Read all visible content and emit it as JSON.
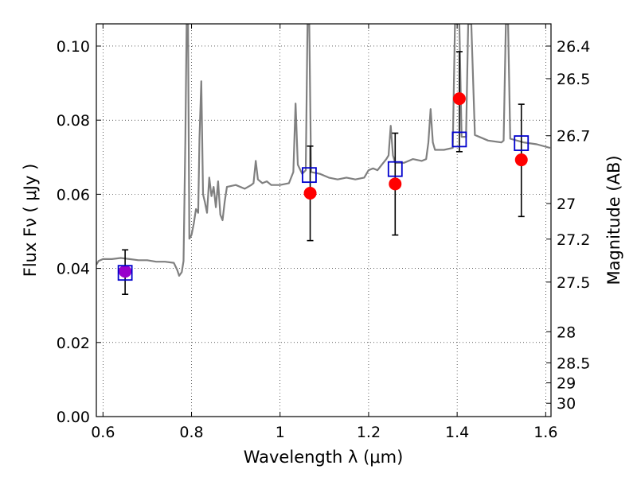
{
  "chart_data": {
    "type": "scatter",
    "title": "",
    "xlabel": "Wavelength  λ (μm)",
    "ylabel": "Flux  Fν  ( μJy )",
    "ylabel_right": "Magnitude (AB)",
    "xlim": [
      0.585,
      1.612
    ],
    "ylim": [
      0.0,
      0.106
    ],
    "grid": true,
    "x_ticks": [
      0.6,
      0.8,
      1.0,
      1.2,
      1.4,
      1.6
    ],
    "x_tick_labels": [
      "0.6",
      "0.8",
      "1",
      "1.2",
      "1.4",
      "1.6"
    ],
    "y_ticks": [
      0.0,
      0.02,
      0.04,
      0.06,
      0.08,
      0.1
    ],
    "y_tick_labels": [
      "0.00",
      "0.02",
      "0.04",
      "0.06",
      "0.08",
      "0.10"
    ],
    "mag_ticks": [
      {
        "flux": 0.1,
        "label": "26.4"
      },
      {
        "flux": 0.0912,
        "label": "26.5"
      },
      {
        "flux": 0.0758,
        "label": "26.7"
      },
      {
        "flux": 0.0575,
        "label": "27"
      },
      {
        "flux": 0.0479,
        "label": "27.2"
      },
      {
        "flux": 0.0363,
        "label": "27.5"
      },
      {
        "flux": 0.0229,
        "label": "28"
      },
      {
        "flux": 0.0145,
        "label": "28.5"
      },
      {
        "flux": 0.0091,
        "label": "29"
      },
      {
        "flux": 0.0036,
        "label": "30"
      }
    ],
    "series": [
      {
        "kind": "line",
        "color": "#808080",
        "points": [
          [
            0.585,
            0.041
          ],
          [
            0.59,
            0.042
          ],
          [
            0.6,
            0.0425
          ],
          [
            0.62,
            0.0425
          ],
          [
            0.64,
            0.0428
          ],
          [
            0.66,
            0.0425
          ],
          [
            0.68,
            0.0422
          ],
          [
            0.7,
            0.0422
          ],
          [
            0.72,
            0.0418
          ],
          [
            0.74,
            0.0418
          ],
          [
            0.76,
            0.0415
          ],
          [
            0.768,
            0.0395
          ],
          [
            0.772,
            0.038
          ],
          [
            0.778,
            0.039
          ],
          [
            0.782,
            0.042
          ],
          [
            0.786,
            0.075
          ],
          [
            0.789,
            0.106
          ],
          [
            0.792,
            0.106
          ],
          [
            0.795,
            0.048
          ],
          [
            0.8,
            0.049
          ],
          [
            0.805,
            0.052
          ],
          [
            0.81,
            0.056
          ],
          [
            0.815,
            0.055
          ],
          [
            0.818,
            0.075
          ],
          [
            0.822,
            0.0905
          ],
          [
            0.826,
            0.06
          ],
          [
            0.83,
            0.058
          ],
          [
            0.835,
            0.055
          ],
          [
            0.84,
            0.0645
          ],
          [
            0.845,
            0.0595
          ],
          [
            0.85,
            0.062
          ],
          [
            0.855,
            0.0565
          ],
          [
            0.86,
            0.0635
          ],
          [
            0.865,
            0.0545
          ],
          [
            0.87,
            0.053
          ],
          [
            0.875,
            0.058
          ],
          [
            0.88,
            0.062
          ],
          [
            0.9,
            0.0625
          ],
          [
            0.92,
            0.0615
          ],
          [
            0.935,
            0.0625
          ],
          [
            0.94,
            0.063
          ],
          [
            0.945,
            0.069
          ],
          [
            0.95,
            0.064
          ],
          [
            0.96,
            0.063
          ],
          [
            0.97,
            0.0635
          ],
          [
            0.98,
            0.0625
          ],
          [
            1.0,
            0.0625
          ],
          [
            1.02,
            0.063
          ],
          [
            1.03,
            0.066
          ],
          [
            1.035,
            0.0845
          ],
          [
            1.04,
            0.068
          ],
          [
            1.05,
            0.0655
          ],
          [
            1.058,
            0.0665
          ],
          [
            1.062,
            0.106
          ],
          [
            1.066,
            0.106
          ],
          [
            1.07,
            0.066
          ],
          [
            1.09,
            0.0655
          ],
          [
            1.11,
            0.0645
          ],
          [
            1.13,
            0.064
          ],
          [
            1.15,
            0.0645
          ],
          [
            1.17,
            0.064
          ],
          [
            1.19,
            0.0645
          ],
          [
            1.2,
            0.0665
          ],
          [
            1.21,
            0.067
          ],
          [
            1.22,
            0.0665
          ],
          [
            1.23,
            0.068
          ],
          [
            1.24,
            0.0695
          ],
          [
            1.245,
            0.0705
          ],
          [
            1.25,
            0.0785
          ],
          [
            1.255,
            0.0705
          ],
          [
            1.26,
            0.0685
          ],
          [
            1.28,
            0.0685
          ],
          [
            1.3,
            0.0695
          ],
          [
            1.32,
            0.069
          ],
          [
            1.33,
            0.0695
          ],
          [
            1.335,
            0.074
          ],
          [
            1.34,
            0.083
          ],
          [
            1.345,
            0.074
          ],
          [
            1.35,
            0.072
          ],
          [
            1.37,
            0.072
          ],
          [
            1.39,
            0.0725
          ],
          [
            1.395,
            0.106
          ],
          [
            1.405,
            0.106
          ],
          [
            1.41,
            0.0755
          ],
          [
            1.42,
            0.0755
          ],
          [
            1.425,
            0.106
          ],
          [
            1.432,
            0.106
          ],
          [
            1.44,
            0.076
          ],
          [
            1.47,
            0.0745
          ],
          [
            1.5,
            0.074
          ],
          [
            1.505,
            0.0745
          ],
          [
            1.51,
            0.106
          ],
          [
            1.515,
            0.106
          ],
          [
            1.52,
            0.075
          ],
          [
            1.55,
            0.074
          ],
          [
            1.58,
            0.0735
          ],
          [
            1.61,
            0.0725
          ]
        ]
      },
      {
        "kind": "points",
        "color": "#ff0000",
        "points": [
          {
            "x": 1.068,
            "y": 0.0603,
            "yerr_low": 0.0475,
            "yerr_high": 0.073
          },
          {
            "x": 1.26,
            "y": 0.0628,
            "yerr_low": 0.049,
            "yerr_high": 0.0765
          },
          {
            "x": 1.405,
            "y": 0.0858,
            "yerr_low": 0.0715,
            "yerr_high": 0.0985
          },
          {
            "x": 1.545,
            "y": 0.0693,
            "yerr_low": 0.054,
            "yerr_high": 0.0843
          }
        ]
      },
      {
        "kind": "points",
        "color": "#9900cc",
        "points": [
          {
            "x": 0.65,
            "y": 0.0392,
            "yerr_low": 0.033,
            "yerr_high": 0.045
          }
        ]
      },
      {
        "kind": "boxes",
        "color": "#0000cc",
        "points": [
          {
            "x": 0.65,
            "y": 0.0388
          },
          {
            "x": 1.066,
            "y": 0.0652
          },
          {
            "x": 1.26,
            "y": 0.0668
          },
          {
            "x": 1.405,
            "y": 0.0748
          },
          {
            "x": 1.545,
            "y": 0.0738
          }
        ]
      }
    ]
  }
}
